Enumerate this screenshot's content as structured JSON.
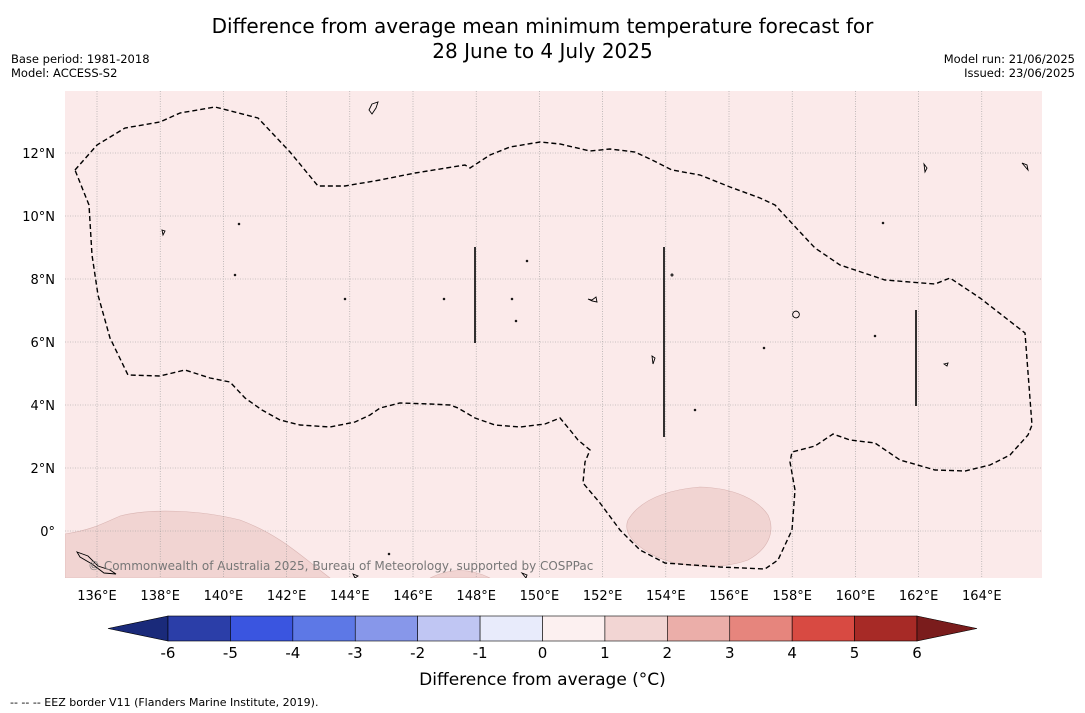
{
  "title_line1": "Difference from average mean minimum temperature forecast for",
  "title_line2": "28 June to 4 July 2025",
  "meta_left": [
    "Base period: 1981-2018",
    "Model: ACCESS-S2"
  ],
  "meta_right": [
    "Model run: 21/06/2025",
    "Issued: 23/06/2025"
  ],
  "copyright": "© Commonwealth of Australia 2025, Bureau of Meteorology, supported by COSPPac",
  "lon_ticks": [
    "136°E",
    "138°E",
    "140°E",
    "142°E",
    "144°E",
    "146°E",
    "148°E",
    "150°E",
    "152°E",
    "154°E",
    "156°E",
    "158°E",
    "160°E",
    "162°E",
    "164°E"
  ],
  "lat_ticks": [
    "12°N",
    "10°N",
    "8°N",
    "6°N",
    "4°N",
    "2°N",
    "0°"
  ],
  "colorbar": {
    "label": "Difference from average (°C)",
    "ticks": [
      "-6",
      "-5",
      "-4",
      "-3",
      "-2",
      "-1",
      "0",
      "1",
      "2",
      "3",
      "4",
      "5",
      "6"
    ],
    "colors": [
      "#1a2a7a",
      "#2b3ea8",
      "#3a55e0",
      "#5d78e6",
      "#8797ea",
      "#c0c6f3",
      "#e8ebfb",
      "#fcf0f0",
      "#f2d5d3",
      "#ebaea9",
      "#e6857d",
      "#d84a42",
      "#a72a26",
      "#7a1c1c"
    ]
  },
  "map_colors": {
    "background": "#fbeaea",
    "warmer_patch": "#f1d4d2"
  },
  "footnote": "-- -- -- EEZ border V11 (Flanders Marine Institute, 2019)."
}
